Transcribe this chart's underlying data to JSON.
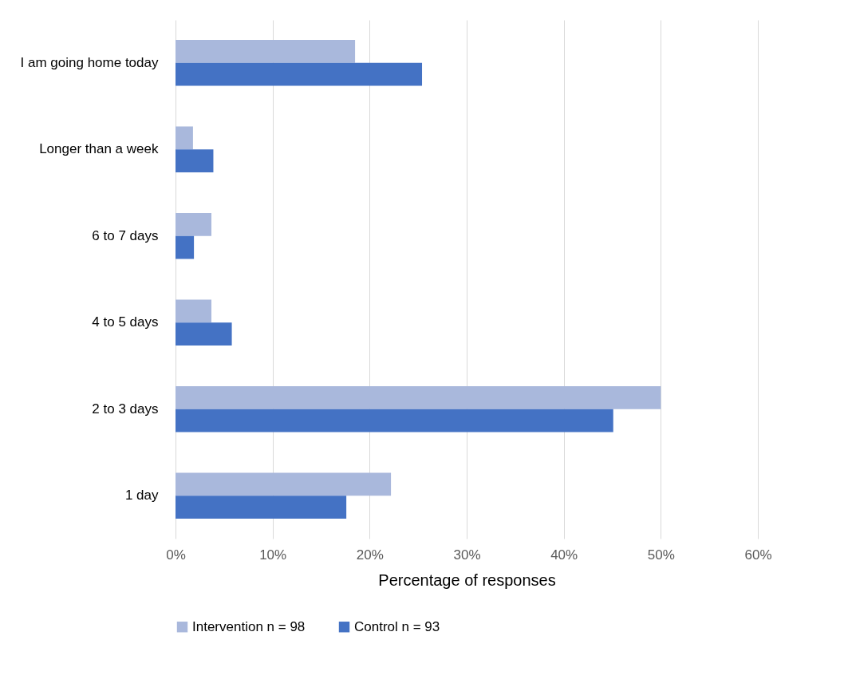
{
  "chart_data": {
    "type": "bar",
    "orientation": "horizontal",
    "xlabel": "Percentage of responses",
    "categories": [
      "I am going home today",
      "Longer than a week",
      "6 to 7 days",
      "4 to 5 days",
      "2 to 3 days",
      "1 day"
    ],
    "series": [
      {
        "name": "Intervention n = 98",
        "color": "#a9b8dc",
        "values": [
          18.5,
          1.8,
          3.7,
          3.7,
          50,
          22.2
        ]
      },
      {
        "name": "Control n = 93",
        "color": "#4472c4",
        "values": [
          25.4,
          3.9,
          1.9,
          5.8,
          45.1,
          17.6
        ]
      }
    ],
    "xlim": [
      0,
      60
    ],
    "xticks": [
      {
        "value": 0,
        "label": "0%"
      },
      {
        "value": 10,
        "label": "10%"
      },
      {
        "value": 20,
        "label": "20%"
      },
      {
        "value": 30,
        "label": "30%"
      },
      {
        "value": 40,
        "label": "40%"
      },
      {
        "value": 50,
        "label": "50%"
      },
      {
        "value": 60,
        "label": "60%"
      }
    ],
    "grid": "x",
    "legend": "bottom"
  }
}
